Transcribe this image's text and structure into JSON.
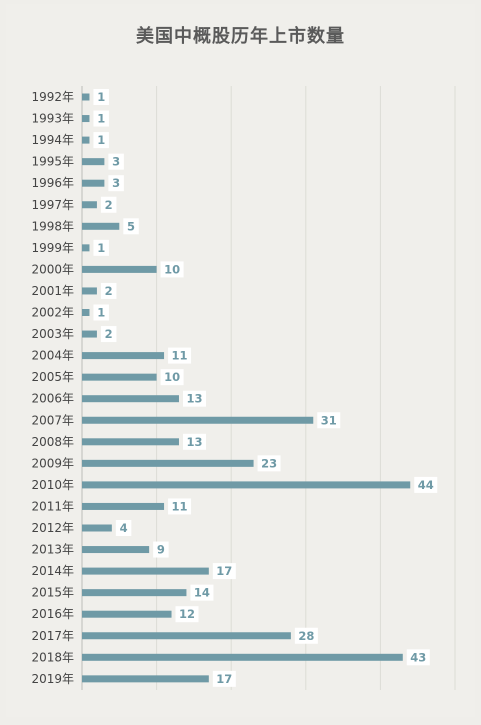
{
  "chart_data": {
    "type": "bar",
    "orientation": "horizontal",
    "title": "美国中概股历年上市数量",
    "categories": [
      "1992年",
      "1993年",
      "1994年",
      "1995年",
      "1996年",
      "1997年",
      "1998年",
      "1999年",
      "2000年",
      "2001年",
      "2002年",
      "2003年",
      "2004年",
      "2005年",
      "2006年",
      "2007年",
      "2008年",
      "2009年",
      "2010年",
      "2011年",
      "2012年",
      "2013年",
      "2014年",
      "2015年",
      "2016年",
      "2017年",
      "2018年",
      "2019年"
    ],
    "series": [
      {
        "values": [
          1,
          1,
          1,
          3,
          3,
          2,
          5,
          1,
          10,
          2,
          1,
          2,
          11,
          10,
          13,
          31,
          13,
          23,
          44,
          11,
          4,
          9,
          17,
          14,
          12,
          28,
          43,
          17
        ]
      }
    ],
    "xlim": [
      0,
      50
    ],
    "grid": true,
    "legend": "none",
    "colors": {
      "bar": "#6f9aa6",
      "label_bg": "#ffffff",
      "background": "#f0efeb",
      "gridline": "#dcdcd6"
    }
  }
}
